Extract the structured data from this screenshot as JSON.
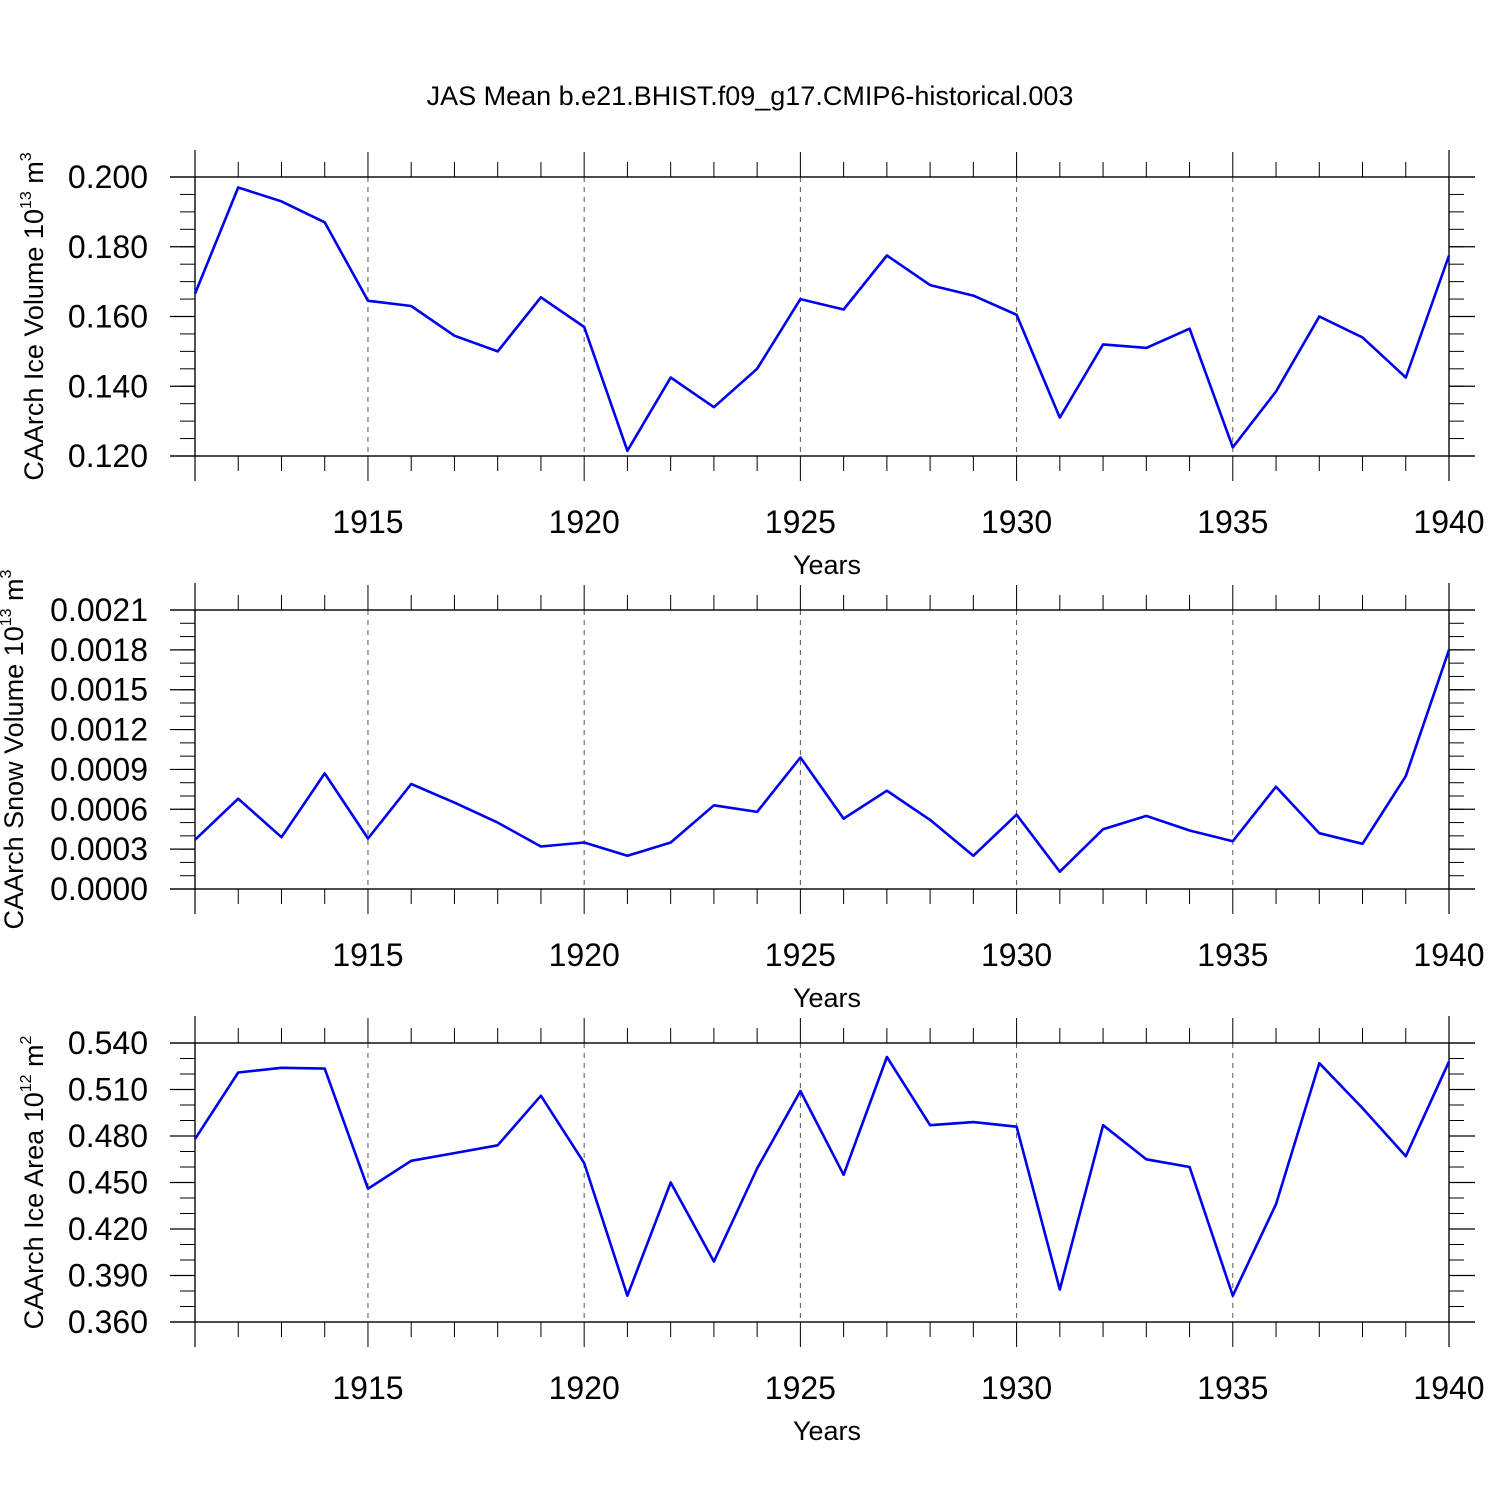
{
  "figure": {
    "title": "JAS Mean b.e21.BHIST.f09_g17.CMIP6-historical.003",
    "line_color": "#0000ee",
    "axis_color": "#000000",
    "grid_color": "#555555"
  },
  "chart_data": [
    {
      "type": "line",
      "id": "ice-volume",
      "title": "",
      "ylabel": "CAArch Ice Volume",
      "ylabel_scale_base": "10",
      "ylabel_scale_exp": "13",
      "ylabel_unit_base": "m",
      "ylabel_unit_exp": "3",
      "xlabel": "Years",
      "xlim": [
        1911,
        1940
      ],
      "ylim": [
        0.12,
        0.2
      ],
      "y_ticks": [
        "0.120",
        "0.140",
        "0.160",
        "0.180",
        "0.200"
      ],
      "y_tick_values": [
        0.12,
        0.14,
        0.16,
        0.18,
        0.2
      ],
      "y_minor_step": 0.005,
      "x_ticks": [
        "1915",
        "1920",
        "1925",
        "1930",
        "1935",
        "1940"
      ],
      "x_tick_values": [
        1915,
        1920,
        1925,
        1930,
        1935,
        1940
      ],
      "x_grid_dashed": true,
      "series": [
        {
          "name": "CAArch Ice Volume",
          "x": [
            1911,
            1912,
            1913,
            1914,
            1915,
            1916,
            1917,
            1918,
            1919,
            1920,
            1921,
            1922,
            1923,
            1924,
            1925,
            1926,
            1927,
            1928,
            1929,
            1930,
            1931,
            1932,
            1933,
            1934,
            1935,
            1936,
            1937,
            1938,
            1939,
            1940
          ],
          "values": [
            0.1665,
            0.197,
            0.193,
            0.187,
            0.1645,
            0.163,
            0.1545,
            0.15,
            0.1655,
            0.157,
            0.1215,
            0.1425,
            0.134,
            0.145,
            0.165,
            0.162,
            0.1775,
            0.169,
            0.166,
            0.1605,
            0.131,
            0.152,
            0.151,
            0.1565,
            0.1225,
            0.1385,
            0.16,
            0.154,
            0.1425,
            0.1775
          ]
        }
      ]
    },
    {
      "type": "line",
      "id": "snow-volume",
      "title": "",
      "ylabel": "CAArch Snow Volume",
      "ylabel_scale_base": "10",
      "ylabel_scale_exp": "13",
      "ylabel_unit_base": "m",
      "ylabel_unit_exp": "3",
      "xlabel": "Years",
      "xlim": [
        1911,
        1940
      ],
      "ylim": [
        0.0,
        0.0021
      ],
      "y_ticks": [
        "0.0000",
        "0.0003",
        "0.0006",
        "0.0009",
        "0.0012",
        "0.0015",
        "0.0018",
        "0.0021"
      ],
      "y_tick_values": [
        0.0,
        0.0003,
        0.0006,
        0.0009,
        0.0012,
        0.0015,
        0.0018,
        0.0021
      ],
      "y_minor_step": 0.0001,
      "x_ticks": [
        "1915",
        "1920",
        "1925",
        "1930",
        "1935",
        "1940"
      ],
      "x_tick_values": [
        1915,
        1920,
        1925,
        1930,
        1935,
        1940
      ],
      "x_grid_dashed": true,
      "series": [
        {
          "name": "CAArch Snow Volume",
          "x": [
            1911,
            1912,
            1913,
            1914,
            1915,
            1916,
            1917,
            1918,
            1919,
            1920,
            1921,
            1922,
            1923,
            1924,
            1925,
            1926,
            1927,
            1928,
            1929,
            1930,
            1931,
            1932,
            1933,
            1934,
            1935,
            1936,
            1937,
            1938,
            1939,
            1940
          ],
          "values": [
            0.00037,
            0.00068,
            0.00039,
            0.00087,
            0.00038,
            0.00079,
            0.00065,
            0.0005,
            0.00032,
            0.00035,
            0.00025,
            0.00035,
            0.00063,
            0.00058,
            0.00099,
            0.00053,
            0.00074,
            0.00052,
            0.00025,
            0.00056,
            0.00013,
            0.00045,
            0.00055,
            0.00044,
            0.00036,
            0.00077,
            0.00042,
            0.00034,
            0.00085,
            0.0018
          ]
        }
      ]
    },
    {
      "type": "line",
      "id": "ice-area",
      "title": "",
      "ylabel": "CAArch Ice Area",
      "ylabel_scale_base": "10",
      "ylabel_scale_exp": "12",
      "ylabel_unit_base": "m",
      "ylabel_unit_exp": "2",
      "xlabel": "Years",
      "xlim": [
        1911,
        1940
      ],
      "ylim": [
        0.36,
        0.54
      ],
      "y_ticks": [
        "0.360",
        "0.390",
        "0.420",
        "0.450",
        "0.480",
        "0.510",
        "0.540"
      ],
      "y_tick_values": [
        0.36,
        0.39,
        0.42,
        0.45,
        0.48,
        0.51,
        0.54
      ],
      "y_minor_step": 0.01,
      "x_ticks": [
        "1915",
        "1920",
        "1925",
        "1930",
        "1935",
        "1940"
      ],
      "x_tick_values": [
        1915,
        1920,
        1925,
        1930,
        1935,
        1940
      ],
      "x_grid_dashed": true,
      "series": [
        {
          "name": "CAArch Ice Area",
          "x": [
            1911,
            1912,
            1913,
            1914,
            1915,
            1916,
            1917,
            1918,
            1919,
            1920,
            1921,
            1922,
            1923,
            1924,
            1925,
            1926,
            1927,
            1928,
            1929,
            1930,
            1931,
            1932,
            1933,
            1934,
            1935,
            1936,
            1937,
            1938,
            1939,
            1940
          ],
          "values": [
            0.478,
            0.521,
            0.524,
            0.5235,
            0.446,
            0.464,
            0.469,
            0.474,
            0.506,
            0.4625,
            0.377,
            0.45,
            0.399,
            0.459,
            0.509,
            0.455,
            0.531,
            0.487,
            0.489,
            0.486,
            0.381,
            0.487,
            0.465,
            0.46,
            0.377,
            0.436,
            0.527,
            0.498,
            0.467,
            0.528
          ]
        }
      ]
    }
  ]
}
